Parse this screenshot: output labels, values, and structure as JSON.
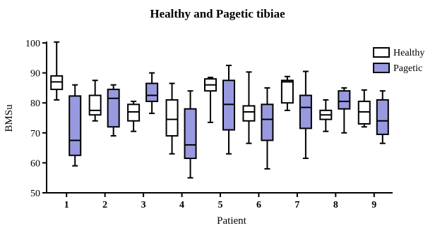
{
  "chart_data": {
    "type": "boxplot",
    "title": "Healthy and Pagetic tibiae",
    "xlabel": "Patient",
    "ylabel": "BMSu",
    "ylim": [
      50,
      100
    ],
    "yticks": [
      50,
      60,
      70,
      80,
      90,
      100
    ],
    "categories": [
      "1",
      "2",
      "3",
      "4",
      "5",
      "6",
      "7",
      "8",
      "9"
    ],
    "legend_position": "top-right",
    "grid": false,
    "series": [
      {
        "name": "Healthy",
        "color": "#ffffff",
        "boxes": [
          {
            "min": 81,
            "q1": 84.5,
            "median": 87,
            "q3": 89,
            "max": 100.3
          },
          {
            "min": 74,
            "q1": 76,
            "median": 77.5,
            "q3": 82.5,
            "max": 87.5
          },
          {
            "min": 70.5,
            "q1": 74,
            "median": 77,
            "q3": 79.5,
            "max": 80.5
          },
          {
            "min": 63,
            "q1": 69,
            "median": 74.5,
            "q3": 81,
            "max": 86.5
          },
          {
            "min": 73.5,
            "q1": 84,
            "median": 86,
            "q3": 88,
            "max": 88.5
          },
          {
            "min": 66.5,
            "q1": 74,
            "median": 77,
            "q3": 79,
            "max": 90.3
          },
          {
            "min": 77.5,
            "q1": 80,
            "median": 87,
            "q3": 87.5,
            "max": 88.8
          },
          {
            "min": 70.5,
            "q1": 74.5,
            "median": 76,
            "q3": 77.5,
            "max": 81
          },
          {
            "min": 72,
            "q1": 73,
            "median": 77,
            "q3": 80.5,
            "max": 84.3
          }
        ]
      },
      {
        "name": "Pagetic",
        "color": "#9999e0",
        "boxes": [
          {
            "min": 59,
            "q1": 62.5,
            "median": 67.5,
            "q3": 82.3,
            "max": 86
          },
          {
            "min": 69,
            "q1": 72,
            "median": 81.5,
            "q3": 84.5,
            "max": 86
          },
          {
            "min": 76.5,
            "q1": 80.5,
            "median": 82.5,
            "q3": 86.5,
            "max": 90
          },
          {
            "min": 55,
            "q1": 61.5,
            "median": 66,
            "q3": 78,
            "max": 84
          },
          {
            "min": 63,
            "q1": 71,
            "median": 79.5,
            "q3": 87.5,
            "max": 92.5
          },
          {
            "min": 58,
            "q1": 67.5,
            "median": 74.5,
            "q3": 79.5,
            "max": 85
          },
          {
            "min": 61.5,
            "q1": 71.5,
            "median": 78.5,
            "q3": 82.5,
            "max": 90.5
          },
          {
            "min": 70,
            "q1": 78,
            "median": 80.5,
            "q3": 84,
            "max": 85
          },
          {
            "min": 66.5,
            "q1": 69.5,
            "median": 74,
            "q3": 81,
            "max": 84
          }
        ]
      }
    ]
  }
}
